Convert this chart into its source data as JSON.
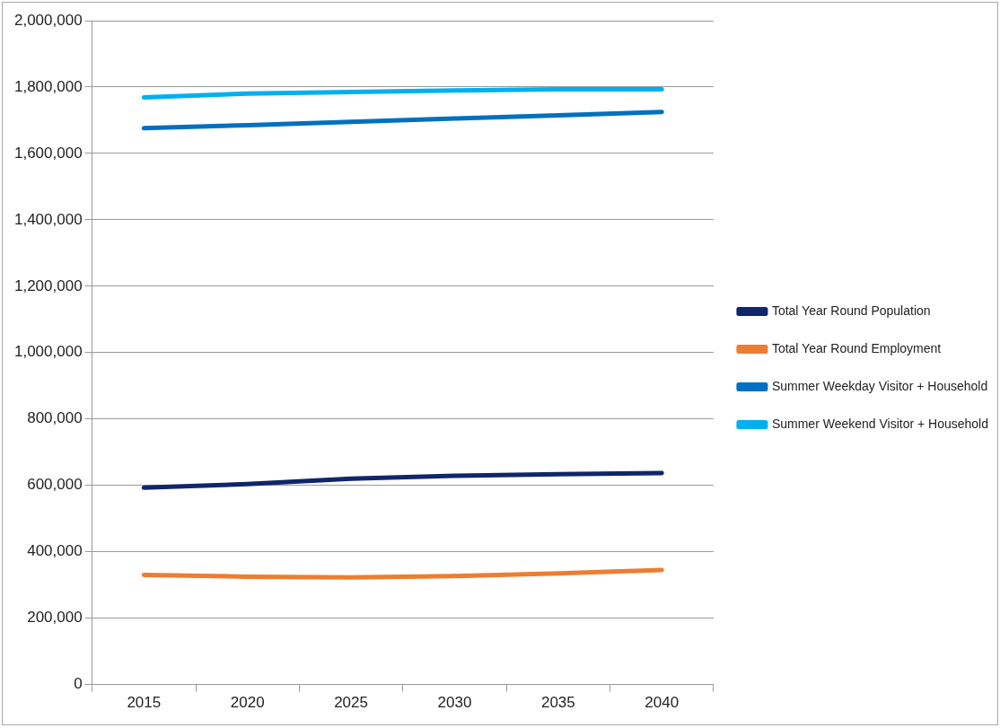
{
  "chart_data": {
    "type": "line",
    "categories": [
      "2015",
      "2020",
      "2025",
      "2030",
      "2035",
      "2040"
    ],
    "series": [
      {
        "name": "Total Year Round Population",
        "color": "#10256a",
        "values": [
          593000,
          604000,
          620000,
          629000,
          634000,
          637000
        ]
      },
      {
        "name": "Total Year Round Employment",
        "color": "#ed7d31",
        "values": [
          330000,
          325000,
          323000,
          327000,
          335000,
          345000
        ]
      },
      {
        "name": "Summer Weekday Visitor + Household",
        "color": "#0070c0",
        "values": [
          1676000,
          1685000,
          1695000,
          1705000,
          1715000,
          1725000
        ]
      },
      {
        "name": "Summer Weekend Visitor + Household",
        "color": "#00b0f0",
        "values": [
          1769000,
          1780000,
          1785000,
          1790000,
          1793000,
          1793000
        ]
      }
    ],
    "ylim": [
      0,
      2000000
    ],
    "yticks": [
      0,
      {
        "value": 200000,
        "label": "200,000"
      },
      {
        "value": 400000,
        "label": "400,000"
      },
      {
        "value": 600000,
        "label": "600,000"
      },
      {
        "value": 800000,
        "label": "800,000"
      },
      {
        "value": 1000000,
        "label": "1,000,000"
      },
      {
        "value": 1200000,
        "label": "1,200,000"
      },
      {
        "value": 1400000,
        "label": "1,400,000"
      },
      {
        "value": 1600000,
        "label": "1,600,000"
      },
      {
        "value": 1800000,
        "label": "1,800,000"
      },
      {
        "value": 2000000,
        "label": "2,000,000"
      }
    ],
    "grid": "y",
    "legend": "right",
    "marker": "none",
    "line_style": "solid"
  }
}
